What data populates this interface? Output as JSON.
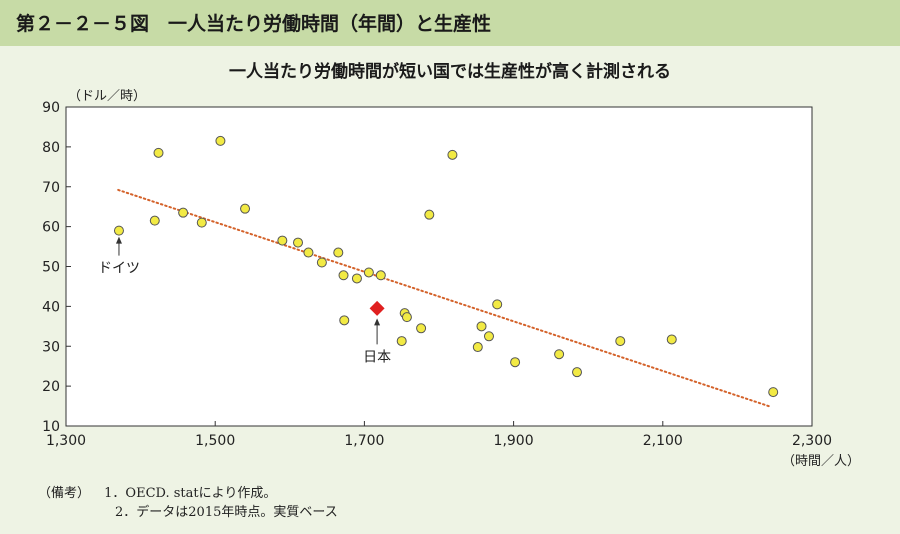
{
  "figure_title": "第２－２－５図　一人当たり労働時間（年間）と生産性",
  "chart_data": {
    "type": "scatter",
    "title": "一人当たり労働時間が短い国では生産性が高く計測される",
    "xlabel": "（時間／人）",
    "ylabel": "（ドル／時）",
    "xlim": [
      1300,
      2300
    ],
    "ylim": [
      10,
      90
    ],
    "x_ticks": [
      1300,
      1500,
      1700,
      1900,
      2100,
      2300
    ],
    "x_tick_labels": [
      "1,300",
      "1,500",
      "1,700",
      "1,900",
      "2,100",
      "2,300"
    ],
    "y_ticks": [
      10,
      20,
      30,
      40,
      50,
      60,
      70,
      80,
      90
    ],
    "y_tick_labels": [
      "10",
      "20",
      "30",
      "40",
      "50",
      "60",
      "70",
      "80",
      "90"
    ],
    "grid": false,
    "points": [
      {
        "x": 1371,
        "y": 59
      },
      {
        "x": 1419,
        "y": 61.5
      },
      {
        "x": 1424,
        "y": 78.5
      },
      {
        "x": 1457,
        "y": 63.5
      },
      {
        "x": 1482,
        "y": 61
      },
      {
        "x": 1507,
        "y": 81.5
      },
      {
        "x": 1540,
        "y": 64.5
      },
      {
        "x": 1590,
        "y": 56.5
      },
      {
        "x": 1611,
        "y": 56
      },
      {
        "x": 1625,
        "y": 53.5
      },
      {
        "x": 1643,
        "y": 51
      },
      {
        "x": 1665,
        "y": 53.5
      },
      {
        "x": 1672,
        "y": 47.8
      },
      {
        "x": 1673,
        "y": 36.5
      },
      {
        "x": 1690,
        "y": 47
      },
      {
        "x": 1706,
        "y": 48.5
      },
      {
        "x": 1722,
        "y": 47.8
      },
      {
        "x": 1750,
        "y": 31.3
      },
      {
        "x": 1754,
        "y": 38.3
      },
      {
        "x": 1757,
        "y": 37.3
      },
      {
        "x": 1776,
        "y": 34.5
      },
      {
        "x": 1787,
        "y": 63
      },
      {
        "x": 1818,
        "y": 78
      },
      {
        "x": 1852,
        "y": 29.8
      },
      {
        "x": 1857,
        "y": 35
      },
      {
        "x": 1867,
        "y": 32.5
      },
      {
        "x": 1878,
        "y": 40.5
      },
      {
        "x": 1902,
        "y": 26
      },
      {
        "x": 1961,
        "y": 28
      },
      {
        "x": 1985,
        "y": 23.5
      },
      {
        "x": 2043,
        "y": 31.3
      },
      {
        "x": 2112,
        "y": 31.7
      },
      {
        "x": 2248,
        "y": 18.5
      }
    ],
    "highlight": {
      "x": 1717,
      "y": 39.5,
      "label": "日本",
      "color": "#e02020"
    },
    "annotation": {
      "x": 1371,
      "y": 59,
      "label": "ドイツ"
    },
    "trendline": {
      "x": [
        1370,
        2245
      ],
      "y": [
        69.2,
        14.8
      ],
      "color": "#d4622a",
      "style": "dotted"
    },
    "colors": {
      "point_fill": "#f2ea44",
      "point_stroke": "#555555",
      "plot_bg": "#ffffff",
      "trend": "#d4622a"
    }
  },
  "notes": {
    "label": "（備考）",
    "items": [
      "1．OECD. statにより作成。",
      "2．データは2015年時点。実質ベース"
    ]
  }
}
